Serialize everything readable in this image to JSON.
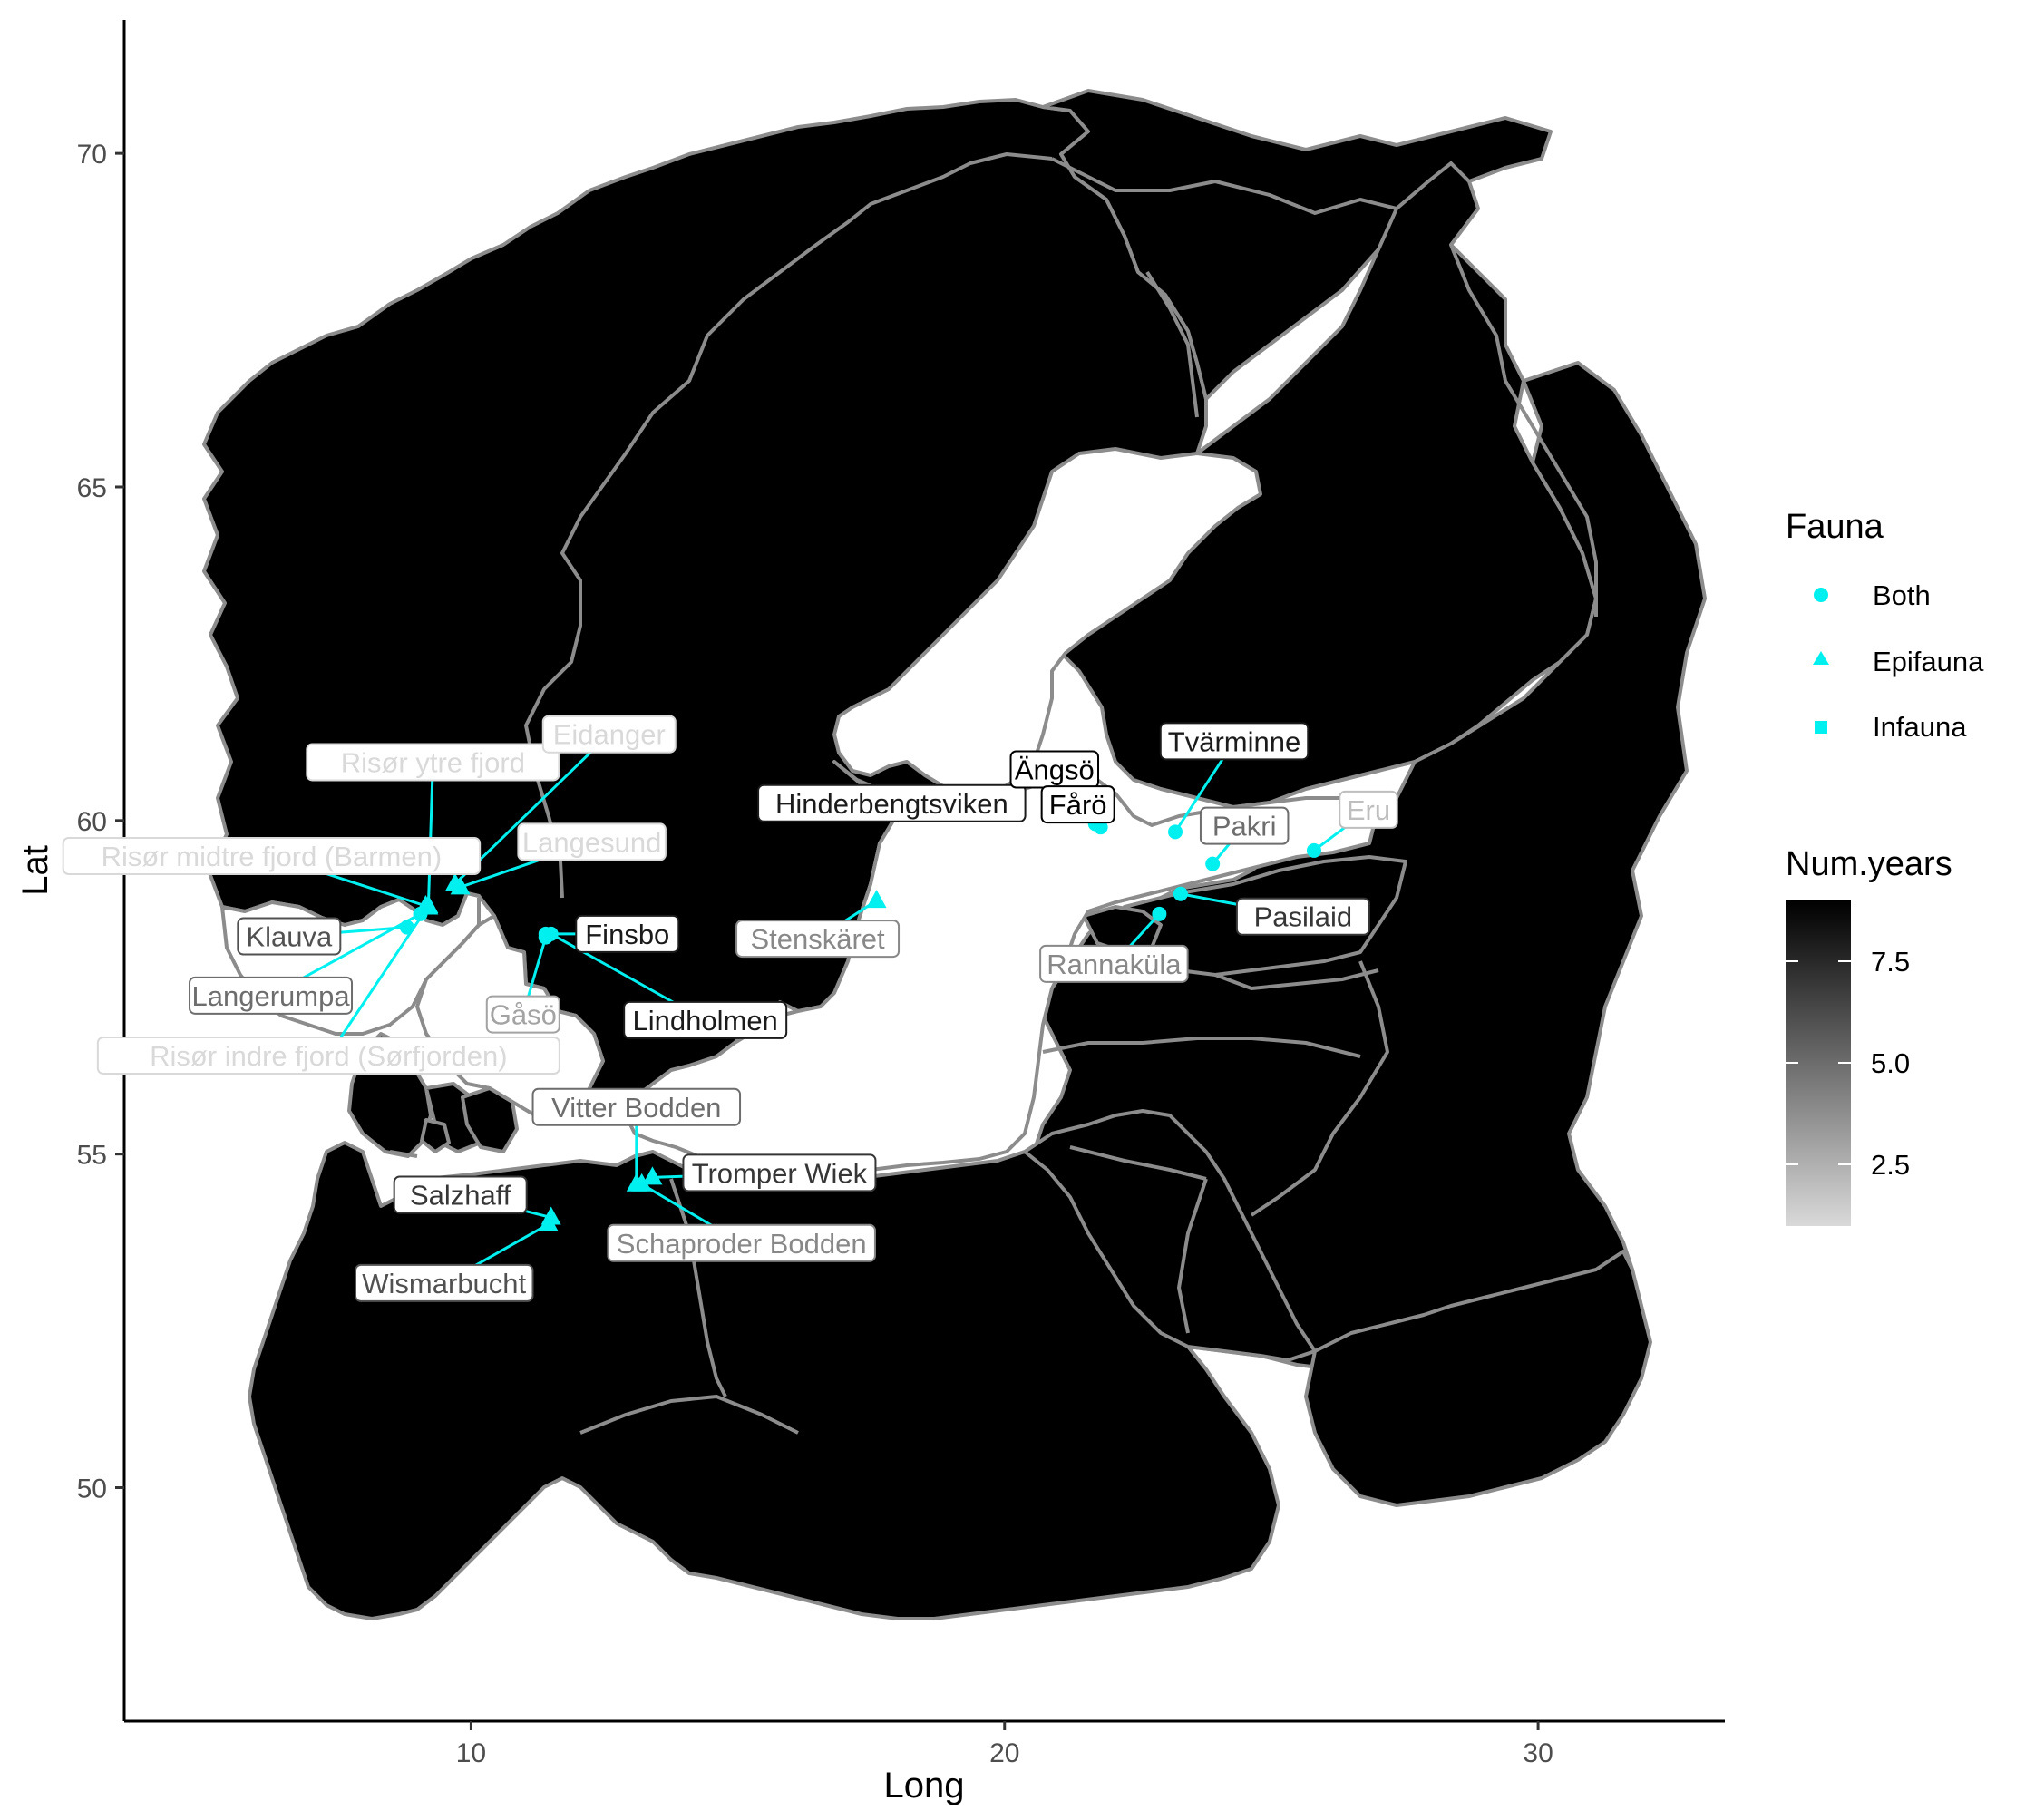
{
  "axes": {
    "x_title": "Long",
    "y_title": "Lat",
    "x_ticks": [
      "10",
      "20",
      "30"
    ],
    "y_ticks": [
      "50",
      "55",
      "60",
      "65",
      "70"
    ]
  },
  "legend": {
    "fauna_title": "Fauna",
    "fauna_items": [
      {
        "label": "Both",
        "shape": "circle"
      },
      {
        "label": "Epifauna",
        "shape": "triangle"
      },
      {
        "label": "Infauna",
        "shape": "square"
      }
    ],
    "years_title": "Num.years",
    "years_ticks": [
      "7.5",
      "5.0",
      "2.5"
    ]
  },
  "colors": {
    "land": "#000000",
    "border": "#8c8c8c",
    "sea": "#ffffff",
    "marker": "#00f0f0"
  },
  "chart_data": {
    "type": "scatter",
    "xlabel": "Long",
    "ylabel": "Lat",
    "xlim": [
      3.5,
      33.5
    ],
    "ylim": [
      46.5,
      72
    ],
    "x_ticks": [
      10,
      20,
      30
    ],
    "y_ticks": [
      50,
      55,
      60,
      65,
      70
    ],
    "grid": false,
    "legend_position": "right",
    "shape_legend": "Fauna",
    "fill_legend": "Num.years",
    "fill_range": [
      1,
      9
    ],
    "points": [
      {
        "name": "Risør ytre fjord",
        "long": 9.2,
        "lat": 58.7,
        "fauna": "Epifauna",
        "years": 1
      },
      {
        "name": "Eidanger",
        "long": 9.7,
        "lat": 59.05,
        "fauna": "Epifauna",
        "years": 1
      },
      {
        "name": "Risør midtre fjord (Barmen)",
        "long": 9.15,
        "lat": 58.72,
        "fauna": "Epifauna",
        "years": 1
      },
      {
        "name": "Langesund",
        "long": 9.8,
        "lat": 59.0,
        "fauna": "Epifauna",
        "years": 1
      },
      {
        "name": "Klauva",
        "long": 8.8,
        "lat": 58.4,
        "fauna": "Both",
        "years": 6
      },
      {
        "name": "Langerumpa",
        "long": 9.05,
        "lat": 58.6,
        "fauna": "Both",
        "years": 5
      },
      {
        "name": "Risør indre fjord (Sørfjorden)",
        "long": 9.2,
        "lat": 58.72,
        "fauna": "Epifauna",
        "years": 1
      },
      {
        "name": "Finsbo",
        "long": 11.4,
        "lat": 58.3,
        "fauna": "Both",
        "years": 8
      },
      {
        "name": "Gåsö",
        "long": 11.4,
        "lat": 58.25,
        "fauna": "Both",
        "years": 3
      },
      {
        "name": "Lindholmen",
        "long": 11.5,
        "lat": 58.3,
        "fauna": "Both",
        "years": 8
      },
      {
        "name": "Vitter Bodden",
        "long": 13.1,
        "lat": 54.55,
        "fauna": "Epifauna",
        "years": 5
      },
      {
        "name": "Tromper Wiek",
        "long": 13.4,
        "lat": 54.65,
        "fauna": "Epifauna",
        "years": 7
      },
      {
        "name": "Schaproder Bodden",
        "long": 13.2,
        "lat": 54.55,
        "fauna": "Epifauna",
        "years": 4
      },
      {
        "name": "Salzhaff",
        "long": 11.5,
        "lat": 54.05,
        "fauna": "Epifauna",
        "years": 7
      },
      {
        "name": "Wismarbucht",
        "long": 11.45,
        "lat": 53.95,
        "fauna": "Epifauna",
        "years": 6
      },
      {
        "name": "Hinderbengtsviken",
        "long": 19.5,
        "lat": 60.15,
        "fauna": "Both",
        "years": 8
      },
      {
        "name": "Stenskäret",
        "long": 17.6,
        "lat": 58.8,
        "fauna": "Epifauna",
        "years": 4
      },
      {
        "name": "Ängsö",
        "long": 21.7,
        "lat": 59.95,
        "fauna": "Both",
        "years": 9
      },
      {
        "name": "Tvärminne",
        "long": 23.2,
        "lat": 59.83,
        "fauna": "Both",
        "years": 8
      },
      {
        "name": "Pakri",
        "long": 23.9,
        "lat": 59.35,
        "fauna": "Both",
        "years": 5
      },
      {
        "name": "Eru",
        "long": 25.8,
        "lat": 59.55,
        "fauna": "Both",
        "years": 2
      },
      {
        "name": "Fårö",
        "long": 21.8,
        "lat": 59.9,
        "fauna": "Both",
        "years": 9
      },
      {
        "name": "Pasilaid",
        "long": 23.3,
        "lat": 58.9,
        "fauna": "Both",
        "years": 7
      },
      {
        "name": "Rannaküla",
        "long": 22.9,
        "lat": 58.6,
        "fauna": "Both",
        "years": 4
      }
    ]
  }
}
